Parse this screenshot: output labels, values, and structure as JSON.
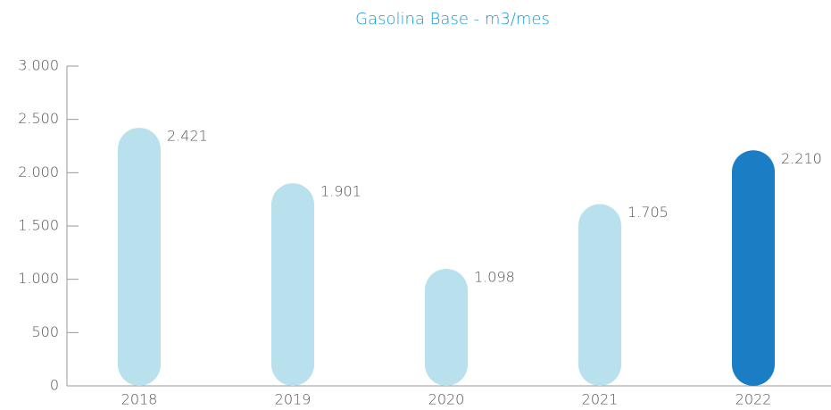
{
  "chart_data": {
    "type": "bar",
    "title": "Gasolina Base - m3/mes",
    "categories": [
      "2018",
      "2019",
      "2020",
      "2021",
      "2022"
    ],
    "values": [
      2421,
      1901,
      1098,
      1705,
      2210
    ],
    "value_labels": [
      "2.421",
      "1.901",
      "1.098",
      "1.705",
      "2.210"
    ],
    "colors": [
      "#b8e1ed",
      "#b8e1ed",
      "#b8e1ed",
      "#b8e1ed",
      "#1b7dc3"
    ],
    "ylim": [
      0,
      3000
    ],
    "yticks": [
      0,
      500,
      {
        "value": 1000,
        "label": "1.000"
      },
      {
        "value": 1500,
        "label": "1.500"
      },
      {
        "value": 2000,
        "label": "2.000"
      },
      {
        "value": 2500,
        "label": "2.500"
      },
      {
        "value": 3000,
        "label": "3.000"
      }
    ],
    "grid": false
  }
}
